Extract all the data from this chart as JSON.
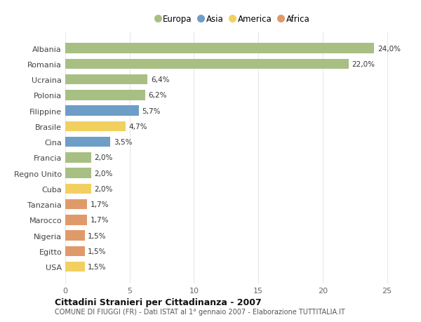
{
  "categories": [
    "Albania",
    "Romania",
    "Ucraina",
    "Polonia",
    "Filippine",
    "Brasile",
    "Cina",
    "Francia",
    "Regno Unito",
    "Cuba",
    "Tanzania",
    "Marocco",
    "Nigeria",
    "Egitto",
    "USA"
  ],
  "values": [
    24.0,
    22.0,
    6.4,
    6.2,
    5.7,
    4.7,
    3.5,
    2.0,
    2.0,
    2.0,
    1.7,
    1.7,
    1.5,
    1.5,
    1.5
  ],
  "continents": [
    "Europa",
    "Europa",
    "Europa",
    "Europa",
    "Asia",
    "America",
    "Asia",
    "Europa",
    "Europa",
    "America",
    "Africa",
    "Africa",
    "Africa",
    "Africa",
    "America"
  ],
  "colors": {
    "Europa": "#a8bf84",
    "Asia": "#6e9dc8",
    "America": "#f2d060",
    "Africa": "#e09a6a"
  },
  "legend_order": [
    "Europa",
    "Asia",
    "America",
    "Africa"
  ],
  "title": "Cittadini Stranieri per Cittadinanza - 2007",
  "subtitle": "COMUNE DI FIUGGI (FR) - Dati ISTAT al 1° gennaio 2007 - Elaborazione TUTTITALIA.IT",
  "xlim": [
    0,
    26
  ],
  "xticks": [
    0,
    5,
    10,
    15,
    20,
    25
  ],
  "background_color": "#ffffff",
  "plot_bg_color": "#ffffff",
  "grid_color": "#e8e8e8",
  "bar_height": 0.65
}
